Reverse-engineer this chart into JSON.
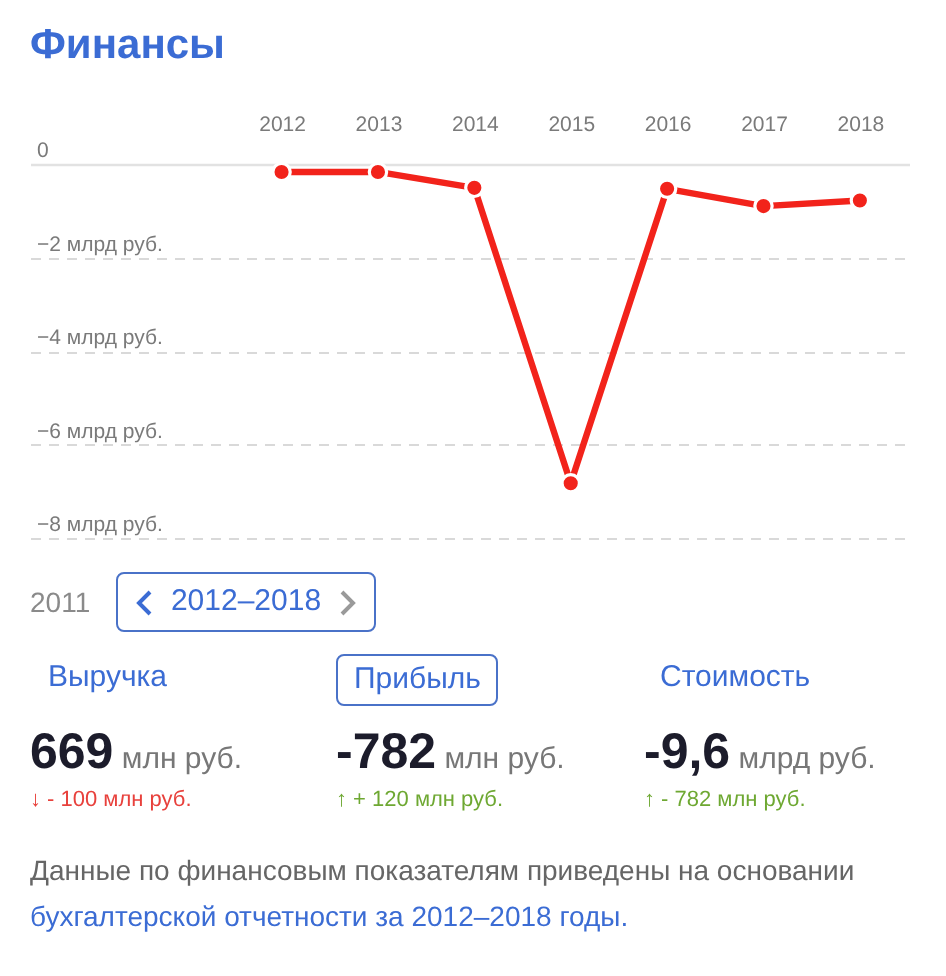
{
  "chart_data": [
    {
      "type": "line",
      "title": "Финансы",
      "categories": [
        "2012",
        "2013",
        "2014",
        "2015",
        "2016",
        "2017",
        "2018"
      ],
      "series": [
        {
          "color": "#f2231b",
          "values": [
            -0.17,
            -0.17,
            -0.51,
            -6.83,
            -0.53,
            -0.9,
            -0.78
          ]
        }
      ],
      "ylim": [
        -8,
        0
      ],
      "yticks": [
        {
          "value": -8,
          "label": "−8 млрд руб."
        },
        {
          "value": -6,
          "label": "−6 млрд руб."
        },
        {
          "value": -4,
          "label": "−4 млрд руб."
        },
        {
          "value": -2,
          "label": "−2 млрд руб."
        },
        0
      ],
      "grid": "y",
      "marker": "circle"
    },
    {
      "type": "other",
      "annotations": [
        "2011",
        "2012–2018",
        "Выручка",
        "Прибыль",
        "Стоимость",
        "669 млн руб.",
        "-782 млн руб.",
        "-9,6 млрд руб.",
        "↓ - 100 млн руб.",
        "↑ + 120 млн руб.",
        "↑ - 782 млн руб.",
        "Данные по финансовым показателям приведены на основании",
        "бухгалтерской отчетности за 2012–2018 годы."
      ]
    }
  ]
}
